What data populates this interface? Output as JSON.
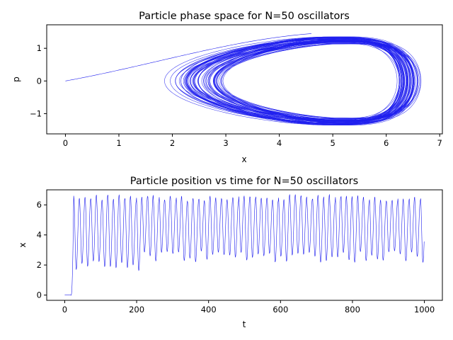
{
  "chart_data": [
    {
      "type": "line",
      "title": "Particle phase space for N=50 oscillators",
      "xlabel": "x",
      "ylabel": "p",
      "xlim": [
        -0.35,
        7.05
      ],
      "ylim": [
        -1.62,
        1.72
      ],
      "xticks": [
        0,
        1,
        2,
        3,
        4,
        5,
        6,
        7
      ],
      "yticks": [
        -1,
        0,
        1
      ],
      "grid": false,
      "series": [
        {
          "color": "#1f1fee",
          "description_points": {
            "x": [
              0.0,
              1.0,
              1.6,
              1.9,
              2.3,
              2.6,
              3.0,
              3.6,
              4.2,
              4.8,
              5.4,
              5.9,
              6.3,
              6.55,
              6.6,
              6.5,
              6.2,
              5.7,
              5.0,
              4.3,
              3.6,
              3.0,
              2.5,
              2.2,
              2.1
            ],
            "y": [
              0.0,
              0.45,
              0.72,
              0.86,
              1.02,
              1.15,
              1.28,
              1.39,
              1.43,
              1.42,
              1.33,
              1.12,
              0.75,
              0.3,
              -0.1,
              -0.55,
              -0.95,
              -1.25,
              -1.43,
              -1.42,
              -1.28,
              -1.08,
              -0.75,
              -0.35,
              0.0
            ]
          }
        }
      ]
    },
    {
      "type": "line",
      "title": "Particle position vs time for N=50 oscillators",
      "xlabel": "t",
      "ylabel": "x",
      "xlim": [
        -50,
        1050
      ],
      "ylim": [
        -0.35,
        7.0
      ],
      "xticks": [
        0,
        200,
        400,
        600,
        800,
        1000
      ],
      "yticks": [
        0,
        2,
        4,
        6
      ],
      "grid": false,
      "series": [
        {
          "color": "#1f1fee",
          "x_range": [
            0,
            1000
          ],
          "initial_value": 0.0,
          "rise_time": 25,
          "period": 15.8,
          "max_range": [
            6.2,
            6.7
          ],
          "min_range": [
            1.6,
            3.0
          ]
        }
      ]
    }
  ]
}
